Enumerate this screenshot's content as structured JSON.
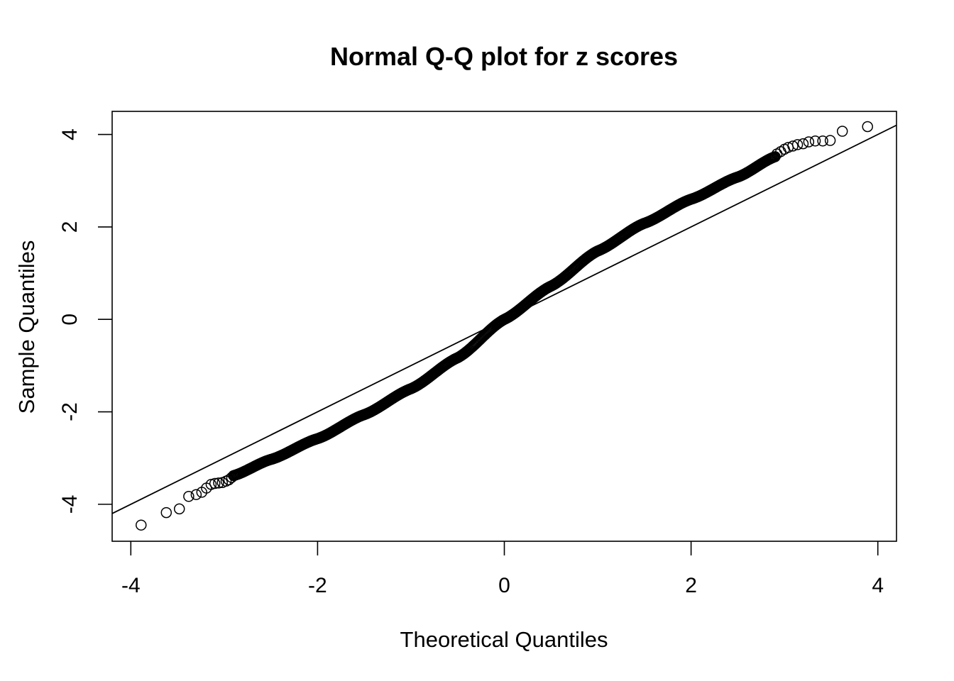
{
  "chart_data": {
    "type": "scatter",
    "title": "Normal Q-Q plot for z scores",
    "xlabel": "Theoretical Quantiles",
    "ylabel": "Sample Quantiles",
    "xlim": [
      -4.2,
      4.2
    ],
    "ylim": [
      -4.8,
      4.5
    ],
    "x_ticks": [
      -4,
      -2,
      0,
      2,
      4
    ],
    "x_tick_labels": [
      "-4",
      "-2",
      "0",
      "2",
      "4"
    ],
    "y_ticks": [
      -4,
      -2,
      0,
      2,
      4
    ],
    "y_tick_labels": [
      "-4",
      "-2",
      "0",
      "2",
      "4"
    ],
    "grid": false,
    "legend": "none",
    "point_marker": "open-circle",
    "point_color": "#000000",
    "reference_line": {
      "points": [
        [
          -4.2,
          -4.2
        ],
        [
          4.2,
          4.2
        ]
      ]
    },
    "tail_points": [
      {
        "x": -3.89,
        "y": -4.45
      },
      {
        "x": -3.62,
        "y": -4.18
      },
      {
        "x": -3.48,
        "y": -4.1
      },
      {
        "x": -3.38,
        "y": -3.83
      },
      {
        "x": -3.3,
        "y": -3.79
      },
      {
        "x": -3.24,
        "y": -3.74
      },
      {
        "x": -3.19,
        "y": -3.65
      },
      {
        "x": -3.14,
        "y": -3.57
      },
      {
        "x": -3.1,
        "y": -3.55
      },
      {
        "x": -3.06,
        "y": -3.54
      },
      {
        "x": -3.02,
        "y": -3.53
      },
      {
        "x": -2.98,
        "y": -3.5
      },
      {
        "x": -2.95,
        "y": -3.47
      },
      {
        "x": -2.92,
        "y": -3.42
      },
      {
        "x": 2.92,
        "y": 3.58
      },
      {
        "x": 2.96,
        "y": 3.63
      },
      {
        "x": 3.0,
        "y": 3.68
      },
      {
        "x": 3.04,
        "y": 3.72
      },
      {
        "x": 3.09,
        "y": 3.75
      },
      {
        "x": 3.14,
        "y": 3.78
      },
      {
        "x": 3.2,
        "y": 3.8
      },
      {
        "x": 3.26,
        "y": 3.84
      },
      {
        "x": 3.33,
        "y": 3.86
      },
      {
        "x": 3.41,
        "y": 3.86
      },
      {
        "x": 3.49,
        "y": 3.87
      },
      {
        "x": 3.62,
        "y": 4.07
      },
      {
        "x": 3.89,
        "y": 4.17
      }
    ],
    "body_curve": {
      "x_range": [
        -2.9,
        2.9
      ],
      "n_points": 600,
      "anchors": [
        {
          "x": -2.9,
          "y": -3.38
        },
        {
          "x": -2.5,
          "y": -3.03
        },
        {
          "x": -2.0,
          "y": -2.58
        },
        {
          "x": -1.5,
          "y": -2.06
        },
        {
          "x": -1.0,
          "y": -1.5
        },
        {
          "x": -0.5,
          "y": -0.83
        },
        {
          "x": 0.0,
          "y": 0.0
        },
        {
          "x": 0.5,
          "y": 0.72
        },
        {
          "x": 1.0,
          "y": 1.48
        },
        {
          "x": 1.5,
          "y": 2.08
        },
        {
          "x": 2.0,
          "y": 2.6
        },
        {
          "x": 2.5,
          "y": 3.08
        },
        {
          "x": 2.9,
          "y": 3.52
        }
      ]
    }
  }
}
